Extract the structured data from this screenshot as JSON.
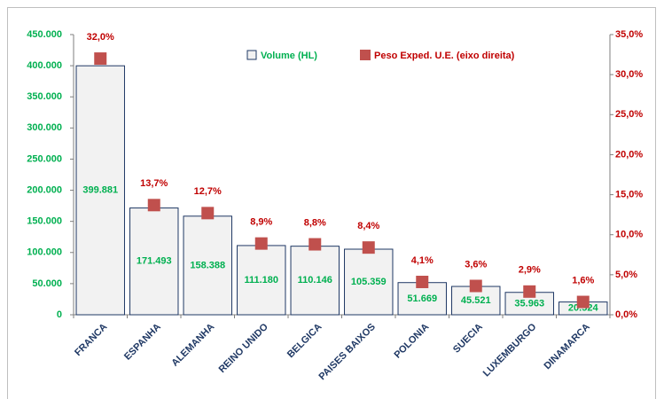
{
  "chart_data": {
    "type": "bar",
    "categories": [
      "FRANCA",
      "ESPANHA",
      "ALEMANHA",
      "REINO UNIDO",
      "BELGICA",
      "PAISES BAIXOS",
      "POLONIA",
      "SUECIA",
      "LUXEMBURGO",
      "DINAMARCA"
    ],
    "series": [
      {
        "name": "Volume (HL)",
        "type": "bar",
        "color": "#f2f2f2",
        "edge_color": "#1f3864",
        "label_color": "#00b050",
        "values": [
          399881,
          171493,
          158388,
          111180,
          110146,
          105359,
          51669,
          45521,
          35963,
          20524
        ],
        "value_labels": [
          "399.881",
          "171.493",
          "158.388",
          "111.180",
          "110.146",
          "105.359",
          "51.669",
          "45.521",
          "35.963",
          "20.524"
        ]
      },
      {
        "name": "Peso Exped. U.E. (eixo direita)",
        "type": "scatter",
        "axis": "y2",
        "color": "#c0504d",
        "label_color": "#c00000",
        "values": [
          32.0,
          13.7,
          12.7,
          8.9,
          8.8,
          8.4,
          4.1,
          3.6,
          2.9,
          1.6
        ],
        "value_labels": [
          "32,0%",
          "13,7%",
          "12,7%",
          "8,9%",
          "8,8%",
          "8,4%",
          "4,1%",
          "3,6%",
          "2,9%",
          "1,6%"
        ]
      }
    ],
    "ylim": [
      0,
      450000
    ],
    "yticks": [
      0,
      {
        "value": 50000,
        "label": "50.000"
      },
      {
        "value": 100000,
        "label": "100.000"
      },
      {
        "value": 150000,
        "label": "150.000"
      },
      {
        "value": 200000,
        "label": "200.000"
      },
      {
        "value": 250000,
        "label": "250.000"
      },
      {
        "value": 300000,
        "label": "300.000"
      },
      {
        "value": 350000,
        "label": "350.000"
      },
      {
        "value": 400000,
        "label": "400.000"
      },
      {
        "value": 450000,
        "label": "450.000"
      }
    ],
    "y2lim": [
      0,
      35
    ],
    "y2ticks": [
      {
        "value": 0,
        "label": "0,0%"
      },
      {
        "value": 5,
        "label": "5,0%"
      },
      {
        "value": 10,
        "label": "10,0%"
      },
      {
        "value": 15,
        "label": "15,0%"
      },
      {
        "value": 20,
        "label": "20,0%"
      },
      {
        "value": 25,
        "label": "25,0%"
      },
      {
        "value": 30,
        "label": "30,0%"
      },
      {
        "value": 35,
        "label": "35,0%"
      }
    ],
    "grid": false,
    "legend": "top"
  }
}
